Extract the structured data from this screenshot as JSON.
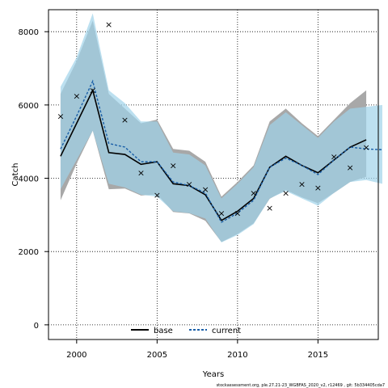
{
  "chart_data": {
    "type": "line",
    "title": "",
    "xlabel": "Years",
    "ylabel": "Catch",
    "xlim": [
      1998.25,
      2018.75
    ],
    "ylim": [
      -400,
      8600
    ],
    "xticks": [
      2000,
      2005,
      2010,
      2015
    ],
    "yticks": [
      0,
      2000,
      4000,
      6000,
      8000
    ],
    "grid": true,
    "legend_position": "bottom-center",
    "series": [
      {
        "name": "base",
        "color": "#000000",
        "band_color": "#a8a8a8",
        "x": [
          1999,
          2000,
          2001,
          2002,
          2003,
          2004,
          2005,
          2006,
          2007,
          2008,
          2009,
          2010,
          2011,
          2012,
          2013,
          2014,
          2015,
          2016,
          2017,
          2018
        ],
        "values": [
          4600,
          5500,
          6400,
          4700,
          4650,
          4380,
          4450,
          3850,
          3800,
          3550,
          2850,
          3100,
          3450,
          4300,
          4600,
          4350,
          4150,
          4500,
          4850,
          5050
        ],
        "lower": [
          3400,
          4400,
          5300,
          3700,
          3720,
          3530,
          3560,
          3080,
          3040,
          2840,
          2260,
          2480,
          2770,
          3440,
          3680,
          3480,
          3320,
          3600,
          3900,
          4040
        ],
        "upper": [
          6300,
          7200,
          8300,
          6300,
          5900,
          5500,
          5600,
          4800,
          4750,
          4450,
          3500,
          3900,
          4350,
          5550,
          5900,
          5500,
          5150,
          5600,
          6050,
          6400
        ]
      },
      {
        "name": "current",
        "color": "#1a5fa8",
        "band_color": "#9fd3ea",
        "x": [
          1999,
          2000,
          2001,
          2002,
          2003,
          2004,
          2005,
          2006,
          2007,
          2008,
          2009,
          2010,
          2011,
          2012,
          2013,
          2014,
          2015,
          2016,
          2017,
          2018,
          2019
        ],
        "values": [
          4800,
          5700,
          6650,
          4950,
          4850,
          4450,
          4450,
          3900,
          3800,
          3600,
          2800,
          3050,
          3400,
          4300,
          4550,
          4350,
          4100,
          4500,
          4850,
          4800,
          4780
        ],
        "lower": [
          3700,
          4500,
          5300,
          3850,
          3750,
          3550,
          3500,
          3100,
          3050,
          2900,
          2250,
          2450,
          2750,
          3450,
          3650,
          3450,
          3250,
          3600,
          3900,
          3950,
          3850
        ],
        "upper": [
          6500,
          7300,
          8500,
          6400,
          6050,
          5550,
          5550,
          4700,
          4650,
          4350,
          3450,
          3850,
          4300,
          5450,
          5800,
          5450,
          5100,
          5550,
          5900,
          5950,
          6000
        ]
      }
    ],
    "observations": {
      "marker": "×",
      "x": [
        1999,
        2000,
        2001,
        2002,
        2003,
        2004,
        2005,
        2006,
        2007,
        2008,
        2009,
        2010,
        2011,
        2012,
        2013,
        2014,
        2015,
        2016,
        2017,
        2018
      ],
      "values": [
        5700,
        6250,
        6400,
        8200,
        5600,
        4150,
        3550,
        4350,
        3850,
        3700,
        3050,
        3050,
        3600,
        3200,
        3600,
        3850,
        3750,
        4600,
        4300,
        4850
      ]
    },
    "footer": "stockassessment.org, ple.27.21-23_WGBFAS_2020_v2, r12469 , git: 5b334405cda7"
  }
}
